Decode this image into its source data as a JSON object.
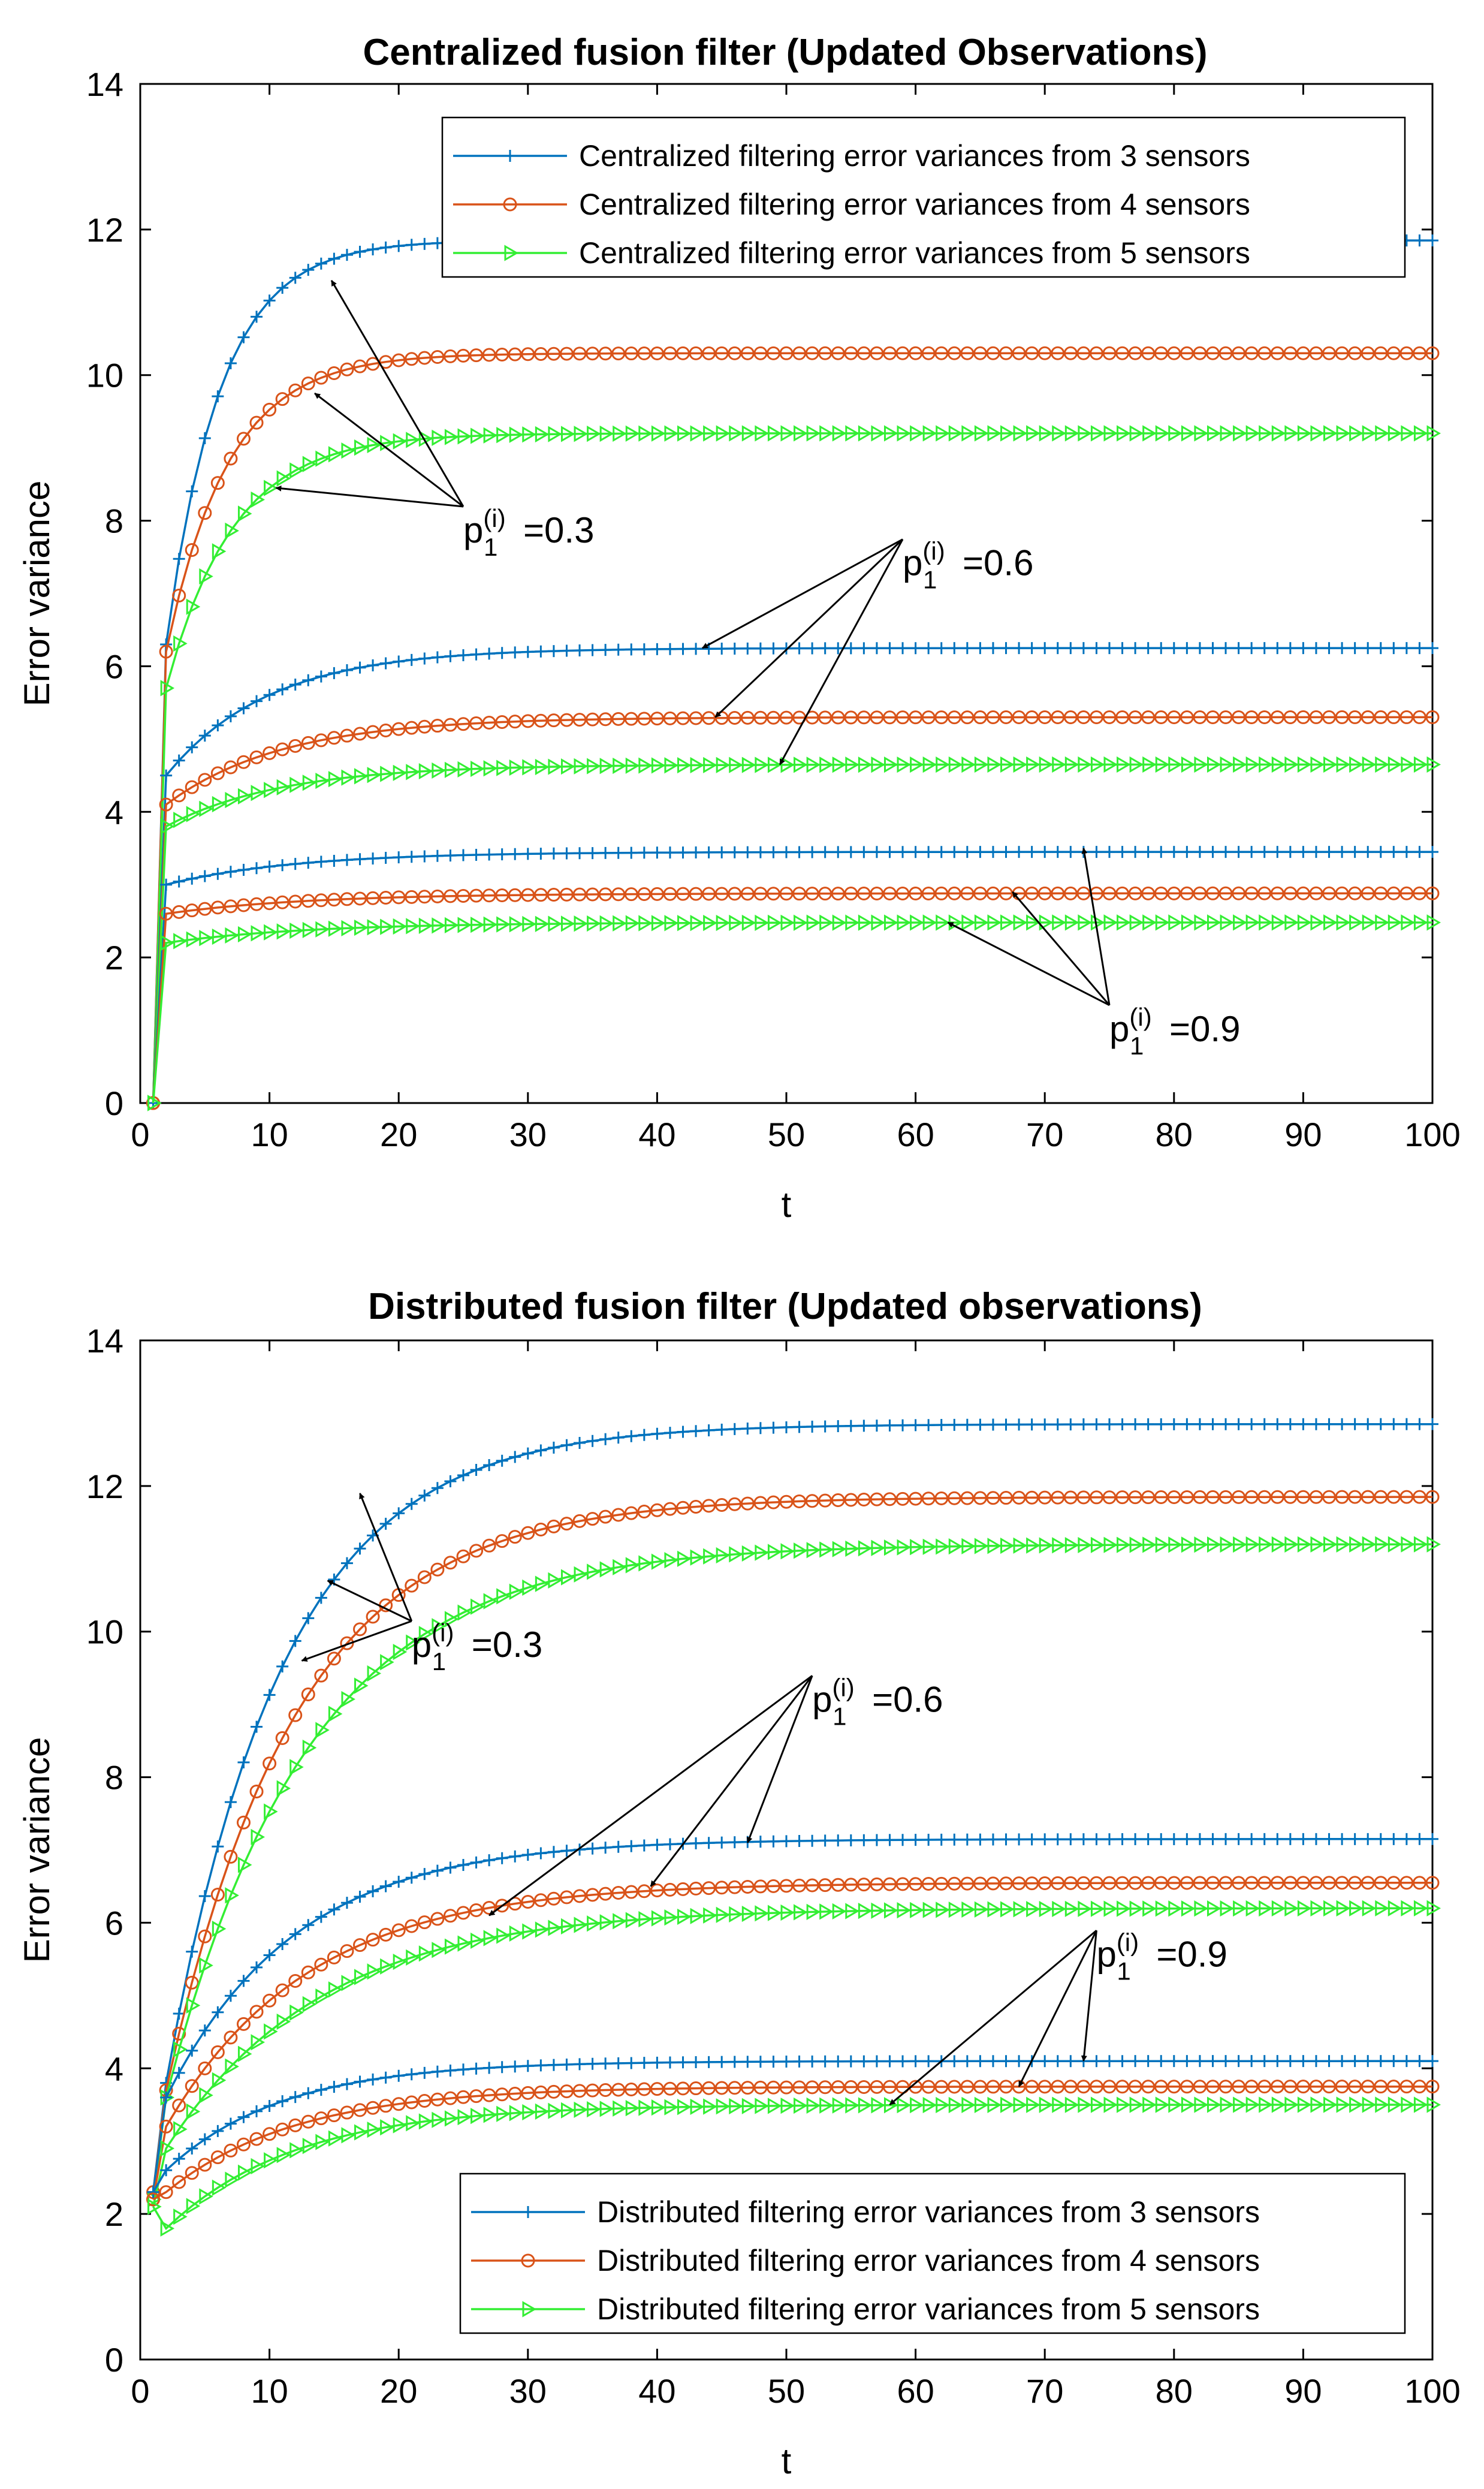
{
  "colors": {
    "s3": "#0072BD",
    "s4": "#D95319",
    "s5": "#33EE33",
    "axis": "#000000"
  },
  "chart_data": [
    {
      "type": "line",
      "title": "Centralized fusion filter (Updated Observations)",
      "xlabel": "t",
      "ylabel": "Error variance",
      "xlim": [
        0,
        100
      ],
      "ylim": [
        0,
        14
      ],
      "xticks": [
        "0",
        "10",
        "20",
        "30",
        "40",
        "50",
        "60",
        "70",
        "80",
        "90",
        "100"
      ],
      "yticks": [
        "0",
        "2",
        "4",
        "6",
        "8",
        "10",
        "12",
        "14"
      ],
      "legend_position": "top-right",
      "legend": [
        "Centralized filtering error variances from 3 sensors",
        "Centralized filtering error variances from 4 sensors",
        "Centralized filtering error variances from 5 sensors"
      ],
      "t_range": [
        1,
        100
      ],
      "series": [
        {
          "name": "3 sensors, p=0.3",
          "sensors": 3,
          "p": 0.3,
          "start": 0,
          "first": 6.3,
          "steady": 11.85,
          "tau": 4.2
        },
        {
          "name": "4 sensors, p=0.3",
          "sensors": 4,
          "p": 0.3,
          "start": 0,
          "first": 6.2,
          "steady": 10.3,
          "tau": 4.8
        },
        {
          "name": "5 sensors, p=0.3",
          "sensors": 5,
          "p": 0.3,
          "start": 0,
          "first": 5.7,
          "steady": 9.2,
          "tau": 5.2
        },
        {
          "name": "3 sensors, p=0.6",
          "sensors": 3,
          "p": 0.6,
          "start": 0,
          "first": 4.5,
          "steady": 6.25,
          "tau": 8
        },
        {
          "name": "4 sensors, p=0.6",
          "sensors": 4,
          "p": 0.6,
          "start": 0,
          "first": 4.1,
          "steady": 5.3,
          "tau": 9
        },
        {
          "name": "5 sensors, p=0.6",
          "sensors": 5,
          "p": 0.6,
          "start": 0,
          "first": 3.8,
          "steady": 4.65,
          "tau": 9
        },
        {
          "name": "3 sensors, p=0.9",
          "sensors": 3,
          "p": 0.9,
          "start": 0,
          "first": 3.0,
          "steady": 3.45,
          "tau": 10
        },
        {
          "name": "4 sensors, p=0.9",
          "sensors": 4,
          "p": 0.9,
          "start": 0,
          "first": 2.6,
          "steady": 2.88,
          "tau": 11
        },
        {
          "name": "5 sensors, p=0.9",
          "sensors": 5,
          "p": 0.9,
          "start": 0,
          "first": 2.2,
          "steady": 2.48,
          "tau": 11
        }
      ],
      "annotations": [
        {
          "base": "p",
          "sub": "1",
          "sup": "(i)",
          "value": "=0.3",
          "x": 25,
          "y": 7.7,
          "targets": [
            [
              14.8,
              11.3
            ],
            [
              13.5,
              9.75
            ],
            [
              10.5,
              8.45
            ]
          ]
        },
        {
          "base": "p",
          "sub": "1",
          "sup": "(i)",
          "value": "=0.6",
          "x": 59,
          "y": 7.25,
          "targets": [
            [
              43.5,
              6.25
            ],
            [
              44.5,
              5.3
            ],
            [
              49.5,
              4.65
            ]
          ]
        },
        {
          "base": "p",
          "sub": "1",
          "sup": "(i)",
          "value": "=0.9",
          "x": 75,
          "y": 0.85,
          "targets": [
            [
              73,
              3.5
            ],
            [
              67.5,
              2.9
            ],
            [
              62.5,
              2.48
            ]
          ]
        }
      ]
    },
    {
      "type": "line",
      "title": "Distributed fusion filter (Updated observations)",
      "xlabel": "t",
      "ylabel": "Error variance",
      "xlim": [
        0,
        100
      ],
      "ylim": [
        0,
        14
      ],
      "xticks": [
        "0",
        "10",
        "20",
        "30",
        "40",
        "50",
        "60",
        "70",
        "80",
        "90",
        "100"
      ],
      "yticks": [
        "0",
        "2",
        "4",
        "6",
        "8",
        "10",
        "12",
        "14"
      ],
      "legend_position": "bottom-right",
      "legend": [
        "Distributed filtering error variances from 3 sensors",
        "Distributed filtering error variances from 4 sensors",
        "Distributed filtering error variances from 5 sensors"
      ],
      "t_range": [
        1,
        100
      ],
      "series": [
        {
          "name": "3 sensors, p=0.3",
          "sensors": 3,
          "p": 0.3,
          "start": 2.3,
          "first": 3.8,
          "steady": 12.85,
          "tau": 9
        },
        {
          "name": "4 sensors, p=0.3",
          "sensors": 4,
          "p": 0.3,
          "start": 2.3,
          "first": 3.7,
          "steady": 11.85,
          "tau": 10
        },
        {
          "name": "5 sensors, p=0.3",
          "sensors": 5,
          "p": 0.3,
          "start": 2.2,
          "first": 3.6,
          "steady": 11.2,
          "tau": 11
        },
        {
          "name": "3 sensors, p=0.6",
          "sensors": 3,
          "p": 0.6,
          "start": 2.3,
          "first": 3.6,
          "steady": 7.15,
          "tau": 10
        },
        {
          "name": "4 sensors, p=0.6",
          "sensors": 4,
          "p": 0.6,
          "start": 2.2,
          "first": 3.2,
          "steady": 6.55,
          "tau": 11
        },
        {
          "name": "5 sensors, p=0.6",
          "sensors": 5,
          "p": 0.6,
          "start": 2.1,
          "first": 2.9,
          "steady": 6.2,
          "tau": 12
        },
        {
          "name": "3 sensors, p=0.9",
          "sensors": 3,
          "p": 0.9,
          "start": 2.3,
          "first": 2.6,
          "steady": 4.1,
          "tau": 9
        },
        {
          "name": "4 sensors, p=0.9",
          "sensors": 4,
          "p": 0.9,
          "start": 2.2,
          "first": 2.3,
          "steady": 3.75,
          "tau": 10
        },
        {
          "name": "5 sensors, p=0.9",
          "sensors": 5,
          "p": 0.9,
          "start": 2.1,
          "first": 1.8,
          "steady": 3.5,
          "tau": 10
        }
      ],
      "annotations": [
        {
          "base": "p",
          "sub": "1",
          "sup": "(i)",
          "value": "=0.3",
          "x": 21,
          "y": 9.65,
          "targets": [
            [
              17,
              11.9
            ],
            [
              14.5,
              10.7
            ],
            [
              12.5,
              9.6
            ]
          ]
        },
        {
          "base": "p",
          "sub": "1",
          "sup": "(i)",
          "value": "=0.6",
          "x": 52,
          "y": 8.9,
          "targets": [
            [
              47,
              7.1
            ],
            [
              39.5,
              6.5
            ],
            [
              27,
              6.1
            ]
          ]
        },
        {
          "base": "p",
          "sub": "1",
          "sup": "(i)",
          "value": "=0.9",
          "x": 74,
          "y": 5.4,
          "targets": [
            [
              73,
              4.1
            ],
            [
              68,
              3.75
            ],
            [
              58,
              3.5
            ]
          ]
        }
      ]
    }
  ]
}
